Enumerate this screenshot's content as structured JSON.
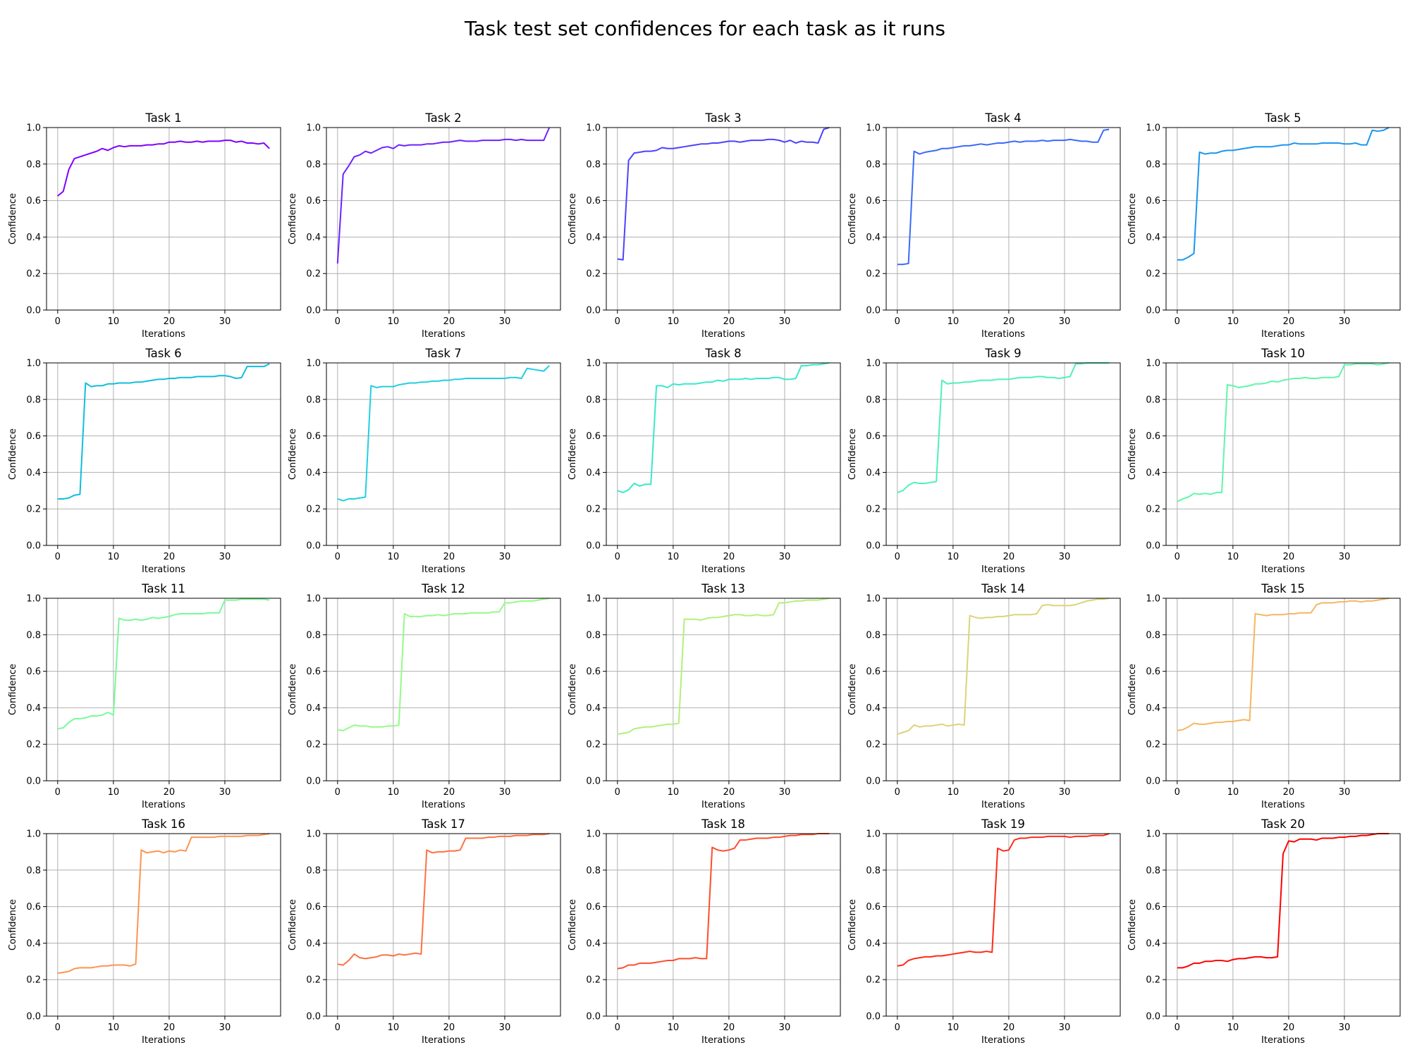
{
  "figure": {
    "title": "Task test set confidences for each task as it runs"
  },
  "chart_data": {
    "type": "line",
    "grid": true,
    "xlabel": "Iterations",
    "ylabel": "Confidence",
    "xlim": [
      -2,
      40
    ],
    "ylim": [
      0,
      1
    ],
    "xticks": [
      0,
      10,
      20,
      30
    ],
    "yticks": [
      0.0,
      0.2,
      0.4,
      0.6,
      0.8,
      1.0
    ],
    "panels": [
      {
        "title": "Task 1",
        "color": "#8000ff",
        "values": [
          0.625,
          0.65,
          0.77,
          0.83,
          0.84,
          0.85,
          0.86,
          0.87,
          0.885,
          0.875,
          0.89,
          0.9,
          0.895,
          0.9,
          0.9,
          0.9,
          0.905,
          0.905,
          0.91,
          0.91,
          0.92,
          0.92,
          0.925,
          0.92,
          0.92,
          0.925,
          0.92,
          0.925,
          0.925,
          0.925,
          0.93,
          0.93,
          0.92,
          0.925,
          0.915,
          0.915,
          0.91,
          0.915,
          0.885
        ]
      },
      {
        "title": "Task 2",
        "color": "#6e21ff",
        "values": [
          0.255,
          0.745,
          0.79,
          0.84,
          0.85,
          0.87,
          0.86,
          0.875,
          0.89,
          0.895,
          0.885,
          0.905,
          0.9,
          0.905,
          0.905,
          0.905,
          0.91,
          0.91,
          0.915,
          0.92,
          0.92,
          0.925,
          0.93,
          0.925,
          0.925,
          0.925,
          0.93,
          0.93,
          0.93,
          0.93,
          0.935,
          0.935,
          0.93,
          0.935,
          0.93,
          0.93,
          0.93,
          0.93,
          1.0
        ]
      },
      {
        "title": "Task 3",
        "color": "#4b43fe",
        "values": [
          0.28,
          0.275,
          0.82,
          0.86,
          0.865,
          0.87,
          0.87,
          0.875,
          0.89,
          0.885,
          0.885,
          0.89,
          0.895,
          0.9,
          0.905,
          0.91,
          0.91,
          0.915,
          0.915,
          0.92,
          0.925,
          0.925,
          0.92,
          0.925,
          0.93,
          0.93,
          0.93,
          0.935,
          0.935,
          0.93,
          0.92,
          0.93,
          0.915,
          0.925,
          0.92,
          0.92,
          0.915,
          0.99,
          1.0
        ]
      },
      {
        "title": "Task 4",
        "color": "#3a6af9",
        "values": [
          0.25,
          0.25,
          0.255,
          0.87,
          0.855,
          0.865,
          0.87,
          0.875,
          0.885,
          0.885,
          0.89,
          0.895,
          0.9,
          0.9,
          0.905,
          0.91,
          0.905,
          0.91,
          0.915,
          0.915,
          0.92,
          0.925,
          0.92,
          0.925,
          0.925,
          0.925,
          0.93,
          0.925,
          0.93,
          0.93,
          0.93,
          0.935,
          0.93,
          0.925,
          0.925,
          0.92,
          0.92,
          0.985,
          0.99
        ]
      },
      {
        "title": "Task 5",
        "color": "#1a96f0",
        "values": [
          0.275,
          0.275,
          0.29,
          0.31,
          0.865,
          0.855,
          0.86,
          0.86,
          0.87,
          0.875,
          0.875,
          0.88,
          0.885,
          0.89,
          0.895,
          0.895,
          0.895,
          0.895,
          0.9,
          0.905,
          0.905,
          0.915,
          0.91,
          0.91,
          0.91,
          0.91,
          0.915,
          0.915,
          0.915,
          0.915,
          0.91,
          0.91,
          0.915,
          0.905,
          0.905,
          0.985,
          0.98,
          0.985,
          1.0
        ]
      },
      {
        "title": "Task 6",
        "color": "#10bedd",
        "values": [
          0.255,
          0.255,
          0.26,
          0.275,
          0.28,
          0.89,
          0.87,
          0.875,
          0.875,
          0.885,
          0.885,
          0.89,
          0.89,
          0.89,
          0.895,
          0.895,
          0.9,
          0.905,
          0.91,
          0.91,
          0.915,
          0.915,
          0.92,
          0.92,
          0.92,
          0.925,
          0.925,
          0.925,
          0.925,
          0.93,
          0.93,
          0.925,
          0.915,
          0.92,
          0.98,
          0.98,
          0.98,
          0.98,
          0.995
        ]
      },
      {
        "title": "Task 7",
        "color": "#22cfe1",
        "values": [
          0.255,
          0.245,
          0.255,
          0.255,
          0.26,
          0.265,
          0.875,
          0.865,
          0.87,
          0.87,
          0.87,
          0.88,
          0.885,
          0.89,
          0.89,
          0.895,
          0.895,
          0.9,
          0.9,
          0.905,
          0.905,
          0.91,
          0.91,
          0.915,
          0.915,
          0.915,
          0.915,
          0.915,
          0.915,
          0.915,
          0.915,
          0.92,
          0.92,
          0.915,
          0.97,
          0.965,
          0.96,
          0.955,
          0.985
        ]
      },
      {
        "title": "Task 8",
        "color": "#3ae8cb",
        "values": [
          0.3,
          0.29,
          0.305,
          0.34,
          0.325,
          0.335,
          0.335,
          0.875,
          0.875,
          0.865,
          0.885,
          0.88,
          0.885,
          0.885,
          0.885,
          0.89,
          0.895,
          0.895,
          0.905,
          0.9,
          0.91,
          0.91,
          0.91,
          0.915,
          0.91,
          0.915,
          0.915,
          0.915,
          0.92,
          0.92,
          0.91,
          0.91,
          0.915,
          0.985,
          0.985,
          0.99,
          0.99,
          0.995,
          1.0
        ]
      },
      {
        "title": "Task 9",
        "color": "#4ef0bd",
        "values": [
          0.29,
          0.3,
          0.33,
          0.345,
          0.34,
          0.34,
          0.345,
          0.35,
          0.905,
          0.885,
          0.89,
          0.89,
          0.895,
          0.895,
          0.9,
          0.905,
          0.905,
          0.905,
          0.91,
          0.91,
          0.91,
          0.915,
          0.92,
          0.92,
          0.92,
          0.925,
          0.925,
          0.92,
          0.92,
          0.915,
          0.92,
          0.925,
          0.995,
          0.995,
          1.0,
          1.0,
          1.0,
          1.0,
          1.0
        ]
      },
      {
        "title": "Task 10",
        "color": "#5ff6ab",
        "values": [
          0.24,
          0.255,
          0.265,
          0.285,
          0.28,
          0.285,
          0.28,
          0.29,
          0.29,
          0.88,
          0.875,
          0.865,
          0.87,
          0.875,
          0.885,
          0.885,
          0.89,
          0.9,
          0.895,
          0.905,
          0.91,
          0.915,
          0.915,
          0.92,
          0.915,
          0.915,
          0.92,
          0.92,
          0.92,
          0.925,
          0.99,
          0.99,
          0.995,
          0.995,
          0.995,
          0.995,
          0.99,
          0.995,
          1.0
        ]
      },
      {
        "title": "Task 11",
        "color": "#78fa98",
        "values": [
          0.285,
          0.29,
          0.32,
          0.34,
          0.34,
          0.345,
          0.355,
          0.355,
          0.36,
          0.375,
          0.36,
          0.89,
          0.88,
          0.88,
          0.885,
          0.88,
          0.885,
          0.895,
          0.89,
          0.895,
          0.9,
          0.91,
          0.915,
          0.915,
          0.915,
          0.915,
          0.915,
          0.92,
          0.92,
          0.92,
          0.99,
          0.99,
          0.99,
          0.995,
          0.995,
          0.995,
          0.995,
          0.995,
          0.99
        ]
      },
      {
        "title": "Task 12",
        "color": "#93fb86",
        "values": [
          0.28,
          0.275,
          0.29,
          0.305,
          0.3,
          0.3,
          0.295,
          0.295,
          0.295,
          0.3,
          0.3,
          0.305,
          0.915,
          0.9,
          0.9,
          0.9,
          0.905,
          0.905,
          0.91,
          0.905,
          0.91,
          0.915,
          0.915,
          0.915,
          0.92,
          0.92,
          0.92,
          0.92,
          0.925,
          0.925,
          0.975,
          0.975,
          0.98,
          0.985,
          0.985,
          0.985,
          0.99,
          0.995,
          1.0
        ]
      },
      {
        "title": "Task 13",
        "color": "#b2f07a",
        "values": [
          0.255,
          0.26,
          0.265,
          0.285,
          0.29,
          0.295,
          0.295,
          0.3,
          0.305,
          0.31,
          0.31,
          0.315,
          0.885,
          0.885,
          0.885,
          0.88,
          0.89,
          0.895,
          0.895,
          0.9,
          0.905,
          0.91,
          0.91,
          0.905,
          0.905,
          0.91,
          0.905,
          0.905,
          0.91,
          0.975,
          0.975,
          0.98,
          0.985,
          0.985,
          0.99,
          0.99,
          0.99,
          0.995,
          1.0
        ]
      },
      {
        "title": "Task 14",
        "color": "#dcd37a",
        "values": [
          0.255,
          0.265,
          0.275,
          0.305,
          0.295,
          0.3,
          0.3,
          0.305,
          0.31,
          0.3,
          0.305,
          0.31,
          0.305,
          0.905,
          0.895,
          0.89,
          0.895,
          0.895,
          0.9,
          0.9,
          0.905,
          0.91,
          0.91,
          0.91,
          0.91,
          0.915,
          0.96,
          0.965,
          0.96,
          0.96,
          0.96,
          0.96,
          0.965,
          0.975,
          0.985,
          0.99,
          0.995,
          0.995,
          1.0
        ]
      },
      {
        "title": "Task 15",
        "color": "#f5b661",
        "values": [
          0.275,
          0.28,
          0.295,
          0.315,
          0.31,
          0.31,
          0.315,
          0.32,
          0.32,
          0.325,
          0.325,
          0.33,
          0.335,
          0.33,
          0.915,
          0.91,
          0.905,
          0.91,
          0.91,
          0.91,
          0.915,
          0.915,
          0.92,
          0.92,
          0.92,
          0.965,
          0.975,
          0.975,
          0.975,
          0.98,
          0.98,
          0.985,
          0.985,
          0.98,
          0.985,
          0.985,
          0.99,
          0.995,
          1.0
        ]
      },
      {
        "title": "Task 16",
        "color": "#ff944f",
        "values": [
          0.235,
          0.24,
          0.245,
          0.26,
          0.265,
          0.265,
          0.265,
          0.27,
          0.275,
          0.275,
          0.28,
          0.28,
          0.28,
          0.275,
          0.285,
          0.91,
          0.895,
          0.9,
          0.905,
          0.895,
          0.905,
          0.9,
          0.91,
          0.905,
          0.98,
          0.98,
          0.98,
          0.98,
          0.98,
          0.985,
          0.985,
          0.985,
          0.985,
          0.985,
          0.99,
          0.99,
          0.99,
          0.995,
          1.0
        ]
      },
      {
        "title": "Task 17",
        "color": "#ff7042",
        "values": [
          0.285,
          0.28,
          0.305,
          0.34,
          0.32,
          0.315,
          0.32,
          0.325,
          0.335,
          0.335,
          0.33,
          0.34,
          0.335,
          0.34,
          0.345,
          0.34,
          0.91,
          0.895,
          0.9,
          0.9,
          0.905,
          0.905,
          0.91,
          0.975,
          0.975,
          0.975,
          0.975,
          0.98,
          0.98,
          0.985,
          0.985,
          0.985,
          0.99,
          0.99,
          0.99,
          0.995,
          0.995,
          0.995,
          1.0
        ]
      },
      {
        "title": "Task 18",
        "color": "#ff4d2e",
        "values": [
          0.26,
          0.265,
          0.28,
          0.28,
          0.29,
          0.29,
          0.29,
          0.295,
          0.3,
          0.305,
          0.305,
          0.315,
          0.315,
          0.315,
          0.32,
          0.315,
          0.315,
          0.925,
          0.91,
          0.905,
          0.91,
          0.92,
          0.965,
          0.965,
          0.97,
          0.975,
          0.975,
          0.975,
          0.98,
          0.98,
          0.985,
          0.99,
          0.99,
          0.995,
          0.995,
          0.995,
          1.0,
          1.0,
          1.0
        ]
      },
      {
        "title": "Task 19",
        "color": "#ff2a17",
        "values": [
          0.275,
          0.28,
          0.305,
          0.315,
          0.32,
          0.325,
          0.325,
          0.33,
          0.33,
          0.335,
          0.34,
          0.345,
          0.35,
          0.355,
          0.35,
          0.35,
          0.355,
          0.35,
          0.92,
          0.905,
          0.91,
          0.965,
          0.975,
          0.975,
          0.98,
          0.98,
          0.98,
          0.985,
          0.985,
          0.985,
          0.985,
          0.98,
          0.985,
          0.985,
          0.985,
          0.99,
          0.99,
          0.99,
          1.0
        ]
      },
      {
        "title": "Task 20",
        "color": "#ff0000",
        "values": [
          0.265,
          0.265,
          0.275,
          0.29,
          0.29,
          0.3,
          0.3,
          0.305,
          0.305,
          0.3,
          0.31,
          0.315,
          0.315,
          0.32,
          0.325,
          0.325,
          0.32,
          0.32,
          0.325,
          0.89,
          0.96,
          0.955,
          0.97,
          0.97,
          0.97,
          0.965,
          0.975,
          0.975,
          0.975,
          0.98,
          0.98,
          0.985,
          0.985,
          0.99,
          0.99,
          0.995,
          1.0,
          1.0,
          1.0
        ]
      }
    ]
  }
}
